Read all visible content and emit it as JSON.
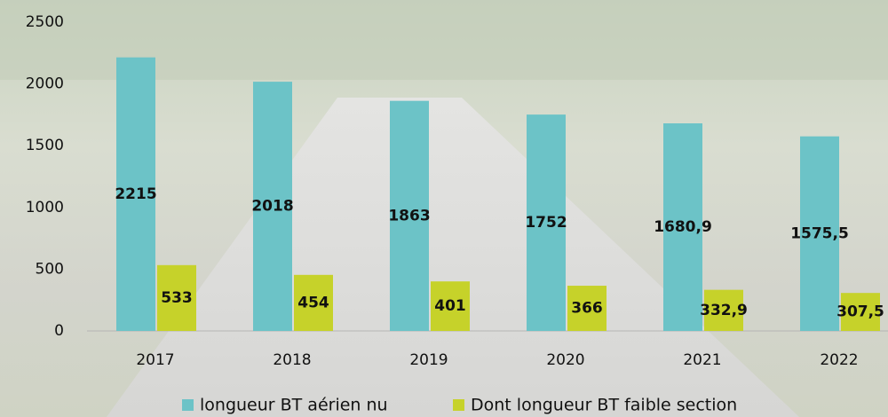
{
  "chart_data": {
    "type": "bar",
    "categories": [
      "2017",
      "2018",
      "2019",
      "2020",
      "2021",
      "2022"
    ],
    "series": [
      {
        "name": "longueur BT aérien nu",
        "color": "#6cc3c7",
        "values": [
          2215,
          2018,
          1863,
          1752,
          1680.9,
          1575.5
        ],
        "value_labels": [
          "2215",
          "2018",
          "1863",
          "1752",
          "1680,9",
          "1575,5"
        ]
      },
      {
        "name": "Dont longueur BT faible section",
        "color": "#c6d22a",
        "values": [
          533,
          454,
          401,
          366,
          332.9,
          307.5
        ],
        "value_labels": [
          "533",
          "454",
          "401",
          "366",
          "332,9",
          "307,5"
        ]
      }
    ],
    "ylim": [
      0,
      2500
    ],
    "yticks": [
      0,
      500,
      1000,
      1500,
      2000,
      2500
    ],
    "grid": false
  }
}
